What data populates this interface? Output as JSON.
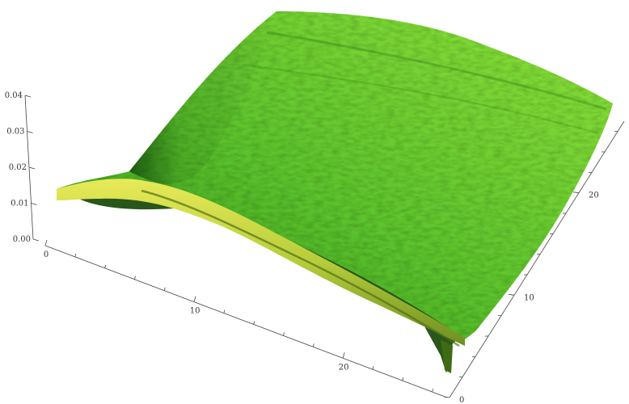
{
  "chart_data": {
    "type": "surface3d",
    "title": "",
    "xlabel": "",
    "ylabel": "",
    "zlabel": "",
    "x_ticks": [
      "0",
      "10",
      "20"
    ],
    "y_ticks": [
      "0",
      "10",
      "20"
    ],
    "z_ticks": [
      "0.00",
      "0.01",
      "0.02",
      "0.03",
      "0.04"
    ],
    "x_range": [
      0,
      27
    ],
    "y_range": [
      0,
      27
    ],
    "z_range": [
      0,
      0.04
    ],
    "surface_description_values": {
      "corner_heights": {
        "x0_y0": 0.012,
        "x27_y0": 0.0,
        "x0_y27": 0.04,
        "x27_y27": 0.022
      }
    },
    "colors": {
      "surface_light": "#8ee23a",
      "surface_mid": "#4fb82a",
      "surface_dark": "#1f6a14",
      "front_face": "#d9e04a",
      "axis": "#444444"
    }
  }
}
